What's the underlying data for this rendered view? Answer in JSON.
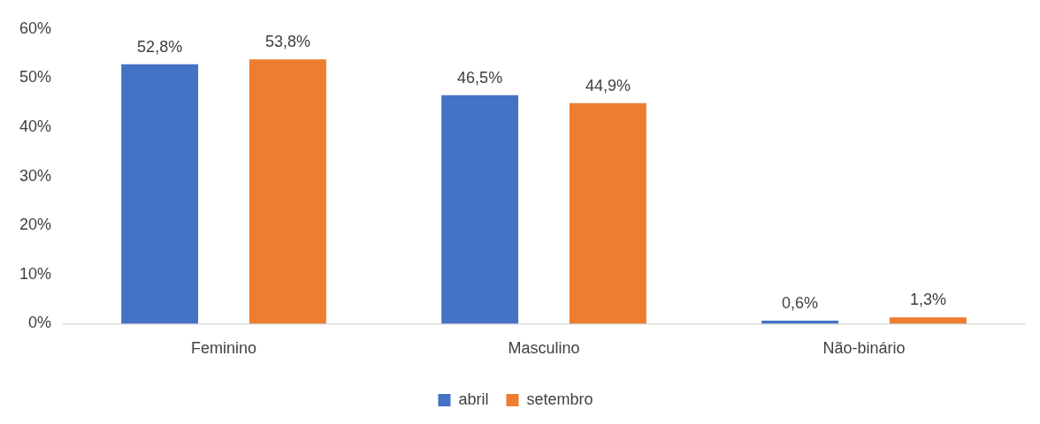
{
  "chart_data": {
    "type": "bar",
    "categories": [
      "Feminino",
      "Masculino",
      "Não-binário"
    ],
    "series": [
      {
        "name": "abril",
        "color": "#4472c4",
        "values": [
          52.8,
          46.5,
          0.6
        ],
        "value_labels": [
          "52,8%",
          "46,5%",
          "0,6%"
        ]
      },
      {
        "name": "setembro",
        "color": "#ed7d31",
        "values": [
          53.8,
          44.9,
          1.3
        ],
        "value_labels": [
          "53,8%",
          "44,9%",
          "1,3%"
        ]
      }
    ],
    "ylim": [
      0,
      60
    ],
    "yticks": [
      {
        "value": 0,
        "label": "0%"
      },
      {
        "value": 10,
        "label": "10%"
      },
      {
        "value": 20,
        "label": "20%"
      },
      {
        "value": 30,
        "label": "30%"
      },
      {
        "value": 40,
        "label": "40%"
      },
      {
        "value": 50,
        "label": "50%"
      },
      {
        "value": 60,
        "label": "60%"
      }
    ],
    "grid": false,
    "legend": "bottom"
  }
}
